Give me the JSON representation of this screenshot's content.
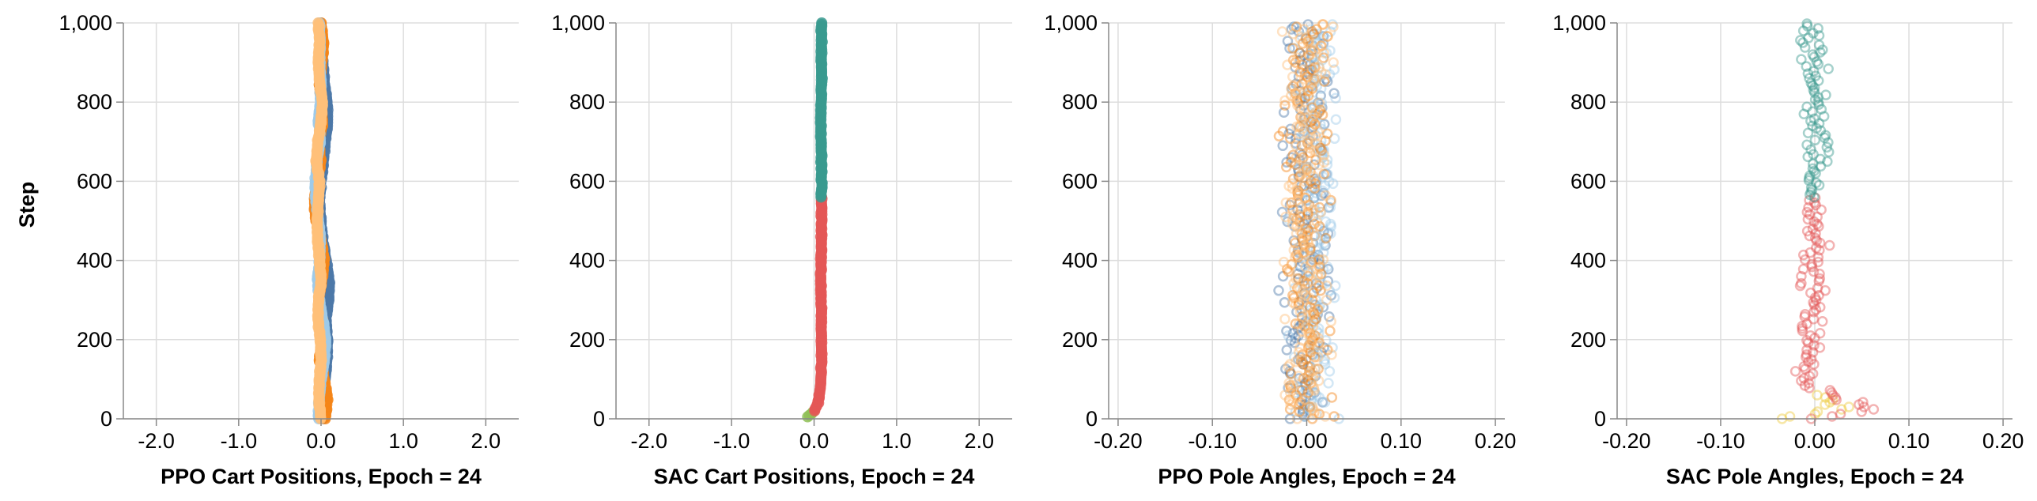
{
  "figure": {
    "shared_ylabel": "Step",
    "colors": {
      "ppo_blue_dark": "#4c78a8",
      "ppo_blue_light": "#9ecae9",
      "ppo_orange_dark": "#f58518",
      "ppo_orange_light": "#ffbf79",
      "sac_green": "#3a9a8f",
      "sac_red": "#e45756",
      "sac_olive": "#8fbf57",
      "sac_yellow": "#eeca3b",
      "grid": "#dddddd",
      "axis": "#888888"
    }
  },
  "chart_data": [
    {
      "type": "scatter",
      "xlabel": "PPO Cart Positions, Epoch = 24",
      "ylabel": "Step",
      "xlim": [
        -2.4,
        2.4
      ],
      "ylim": [
        0,
        1000
      ],
      "xticks": [
        -2.0,
        -1.0,
        0.0,
        1.0,
        2.0
      ],
      "xtick_labels": [
        "-2.0",
        "-1.0",
        "0.0",
        "1.0",
        "2.0"
      ],
      "yticks": [
        0,
        200,
        400,
        600,
        800,
        1000
      ],
      "ytick_labels": [
        "0",
        "200",
        "400",
        "600",
        "800",
        "1,000"
      ],
      "grid": true,
      "mark": "filled",
      "series": [
        {
          "color": "#4c78a8",
          "values": [
            [
              0.02,
              0
            ],
            [
              0.0,
              50
            ],
            [
              0.05,
              100
            ],
            [
              0.07,
              150
            ],
            [
              0.08,
              200
            ],
            [
              0.06,
              250
            ],
            [
              0.09,
              300
            ],
            [
              0.1,
              350
            ],
            [
              0.06,
              400
            ],
            [
              0.02,
              450
            ],
            [
              0.0,
              500
            ],
            [
              -0.02,
              550
            ],
            [
              0.0,
              600
            ],
            [
              0.03,
              650
            ],
            [
              0.05,
              700
            ],
            [
              0.08,
              750
            ],
            [
              0.07,
              800
            ],
            [
              0.04,
              850
            ],
            [
              0.02,
              900
            ],
            [
              0.0,
              950
            ],
            [
              -0.01,
              1000
            ]
          ]
        },
        {
          "color": "#f58518",
          "values": [
            [
              0.05,
              0
            ],
            [
              0.08,
              50
            ],
            [
              0.04,
              100
            ],
            [
              -0.02,
              150
            ],
            [
              0.03,
              200
            ],
            [
              0.02,
              250
            ],
            [
              -0.03,
              300
            ],
            [
              0.01,
              350
            ],
            [
              0.04,
              400
            ],
            [
              0.0,
              450
            ],
            [
              -0.06,
              500
            ],
            [
              -0.08,
              550
            ],
            [
              -0.05,
              600
            ],
            [
              0.0,
              650
            ],
            [
              -0.03,
              700
            ],
            [
              0.02,
              750
            ],
            [
              0.0,
              800
            ],
            [
              -0.02,
              850
            ],
            [
              0.01,
              900
            ],
            [
              0.03,
              950
            ],
            [
              0.0,
              1000
            ]
          ]
        },
        {
          "color": "#9ecae9",
          "values": [
            [
              -0.03,
              0
            ],
            [
              -0.02,
              50
            ],
            [
              0.0,
              100
            ],
            [
              0.04,
              150
            ],
            [
              0.06,
              200
            ],
            [
              0.02,
              250
            ],
            [
              -0.02,
              300
            ],
            [
              -0.04,
              350
            ],
            [
              -0.02,
              400
            ],
            [
              -0.01,
              450
            ],
            [
              -0.03,
              500
            ],
            [
              -0.06,
              550
            ],
            [
              -0.07,
              600
            ],
            [
              -0.05,
              650
            ],
            [
              -0.01,
              700
            ],
            [
              -0.03,
              750
            ],
            [
              -0.01,
              800
            ],
            [
              0.0,
              850
            ],
            [
              -0.02,
              900
            ],
            [
              -0.01,
              950
            ],
            [
              -0.02,
              1000
            ]
          ]
        },
        {
          "color": "#ffbf79",
          "values": [
            [
              0.0,
              0
            ],
            [
              -0.03,
              50
            ],
            [
              -0.02,
              100
            ],
            [
              0.0,
              150
            ],
            [
              -0.01,
              200
            ],
            [
              -0.04,
              250
            ],
            [
              -0.03,
              300
            ],
            [
              0.0,
              350
            ],
            [
              -0.02,
              400
            ],
            [
              -0.04,
              450
            ],
            [
              -0.05,
              500
            ],
            [
              -0.03,
              550
            ],
            [
              -0.02,
              600
            ],
            [
              -0.06,
              650
            ],
            [
              -0.04,
              700
            ],
            [
              0.0,
              750
            ],
            [
              0.02,
              800
            ],
            [
              -0.02,
              850
            ],
            [
              -0.03,
              900
            ],
            [
              -0.02,
              950
            ],
            [
              -0.03,
              1000
            ]
          ]
        }
      ]
    },
    {
      "type": "scatter",
      "xlabel": "SAC Cart Positions, Epoch = 24",
      "ylabel": "",
      "xlim": [
        -2.4,
        2.4
      ],
      "ylim": [
        0,
        1000
      ],
      "xticks": [
        -2.0,
        -1.0,
        0.0,
        1.0,
        2.0
      ],
      "xtick_labels": [
        "-2.0",
        "-1.0",
        "0.0",
        "1.0",
        "2.0"
      ],
      "yticks": [
        0,
        200,
        400,
        600,
        800,
        1000
      ],
      "ytick_labels": [
        "0",
        "200",
        "400",
        "600",
        "800",
        "1,000"
      ],
      "grid": true,
      "mark": "filled",
      "series": [
        {
          "color": "#8fbf57",
          "values": [
            [
              -0.08,
              5
            ],
            [
              -0.05,
              10
            ],
            [
              -0.02,
              15
            ],
            [
              0.0,
              20
            ]
          ]
        },
        {
          "color": "#e45756",
          "values": [
            [
              0.0,
              20
            ],
            [
              0.05,
              40
            ],
            [
              0.08,
              80
            ],
            [
              0.09,
              150
            ],
            [
              0.09,
              250
            ],
            [
              0.08,
              350
            ],
            [
              0.09,
              450
            ],
            [
              0.09,
              560
            ]
          ]
        },
        {
          "color": "#3a9a8f",
          "values": [
            [
              0.09,
              560
            ],
            [
              0.09,
              650
            ],
            [
              0.08,
              750
            ],
            [
              0.09,
              850
            ],
            [
              0.09,
              950
            ],
            [
              0.09,
              1000
            ]
          ]
        }
      ]
    },
    {
      "type": "scatter",
      "xlabel": "PPO Pole Angles, Epoch = 24",
      "ylabel": "",
      "xlim": [
        -0.21,
        0.21
      ],
      "ylim": [
        0,
        1000
      ],
      "xticks": [
        -0.2,
        -0.1,
        0.0,
        0.1,
        0.2
      ],
      "xtick_labels": [
        "-0.20",
        "-0.10",
        "0.00",
        "0.10",
        "0.20"
      ],
      "yticks": [
        0,
        200,
        400,
        600,
        800,
        1000
      ],
      "ytick_labels": [
        "0",
        "200",
        "400",
        "600",
        "800",
        "1,000"
      ],
      "grid": true,
      "mark": "hollow",
      "spread": 0.035,
      "series": [
        {
          "color": "#4c78a8",
          "values": [
            [
              0.0,
              0
            ],
            [
              0.0,
              1000
            ]
          ]
        },
        {
          "color": "#9ecae9",
          "values": [
            [
              0.01,
              0
            ],
            [
              0.01,
              1000
            ]
          ]
        },
        {
          "color": "#f58518",
          "values": [
            [
              0.0,
              0
            ],
            [
              0.0,
              1000
            ]
          ]
        },
        {
          "color": "#ffbf79",
          "values": [
            [
              0.0,
              0
            ],
            [
              0.0,
              1000
            ]
          ]
        }
      ]
    },
    {
      "type": "scatter",
      "xlabel": "SAC Pole Angles, Epoch = 24",
      "ylabel": "",
      "xlim": [
        -0.21,
        0.21
      ],
      "ylim": [
        0,
        1000
      ],
      "xticks": [
        -0.2,
        -0.1,
        0.0,
        0.1,
        0.2
      ],
      "xtick_labels": [
        "-0.20",
        "-0.10",
        "0.00",
        "0.10",
        "0.20"
      ],
      "yticks": [
        0,
        200,
        400,
        600,
        800,
        1000
      ],
      "ytick_labels": [
        "0",
        "200",
        "400",
        "600",
        "800",
        "1,000"
      ],
      "grid": true,
      "mark": "hollow",
      "spread": 0.02,
      "series": [
        {
          "color": "#eeca3b",
          "values": [
            [
              -0.03,
              0
            ],
            [
              0.03,
              30
            ],
            [
              0.0,
              60
            ]
          ]
        },
        {
          "color": "#e45756",
          "values": [
            [
              0.0,
              0
            ],
            [
              0.06,
              25
            ],
            [
              -0.01,
              80
            ],
            [
              0.0,
              300
            ],
            [
              0.0,
              560
            ]
          ]
        },
        {
          "color": "#3a9a8f",
          "values": [
            [
              0.0,
              560
            ],
            [
              0.0,
              800
            ],
            [
              0.0,
              1000
            ]
          ]
        }
      ]
    }
  ]
}
